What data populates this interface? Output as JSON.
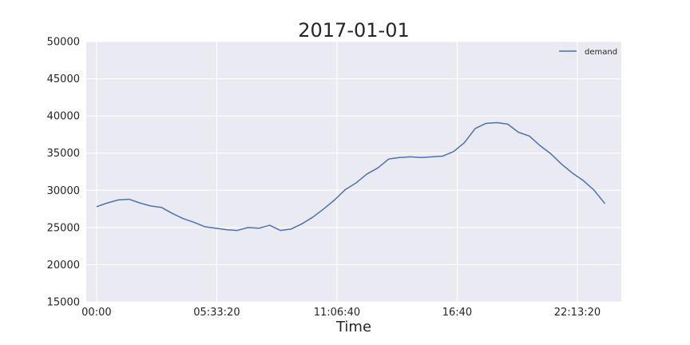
{
  "chart_data": {
    "type": "line",
    "title": "2017-01-01",
    "xlabel": "Time",
    "ylabel": "",
    "ylim": [
      15000,
      50000
    ],
    "yticks": [
      15000,
      20000,
      25000,
      30000,
      35000,
      40000,
      45000,
      50000
    ],
    "xlim_seconds": [
      -1714,
      87314
    ],
    "xtick_values_seconds": [
      0,
      20000,
      40000,
      60000,
      80000
    ],
    "xtick_labels": [
      "00:00",
      "05:33:20",
      "11:06:40",
      "16:40",
      "22:13:20"
    ],
    "grid": true,
    "legend": {
      "position": "top-right"
    },
    "colors": {
      "plot_bg": "#eaeaf2",
      "grid": "#ffffff",
      "line": "#4c72b0",
      "text": "#262626"
    },
    "series": [
      {
        "name": "demand",
        "x_time": [
          "00:00",
          "00:30",
          "01:00",
          "01:30",
          "02:00",
          "02:30",
          "03:00",
          "03:30",
          "04:00",
          "04:30",
          "05:00",
          "05:30",
          "06:00",
          "06:30",
          "07:00",
          "07:30",
          "08:00",
          "08:30",
          "09:00",
          "09:30",
          "10:00",
          "10:30",
          "11:00",
          "11:30",
          "12:00",
          "12:30",
          "13:00",
          "13:30",
          "14:00",
          "14:30",
          "15:00",
          "15:30",
          "16:00",
          "16:30",
          "17:00",
          "17:30",
          "18:00",
          "18:30",
          "19:00",
          "19:30",
          "20:00",
          "20:30",
          "21:00",
          "21:30",
          "22:00",
          "22:30",
          "23:00",
          "23:30"
        ],
        "values": [
          27800,
          28300,
          28700,
          28800,
          28300,
          27900,
          27700,
          26900,
          26200,
          25700,
          25100,
          24900,
          24700,
          24600,
          25000,
          24900,
          25300,
          24600,
          24800,
          25500,
          26400,
          27500,
          28700,
          30100,
          31000,
          32200,
          33000,
          34200,
          34400,
          34500,
          34400,
          34500,
          34600,
          35200,
          36400,
          38300,
          39000,
          39100,
          38900,
          37800,
          37300,
          36000,
          34900,
          33500,
          32300,
          31300,
          30000,
          28200
        ]
      }
    ]
  }
}
